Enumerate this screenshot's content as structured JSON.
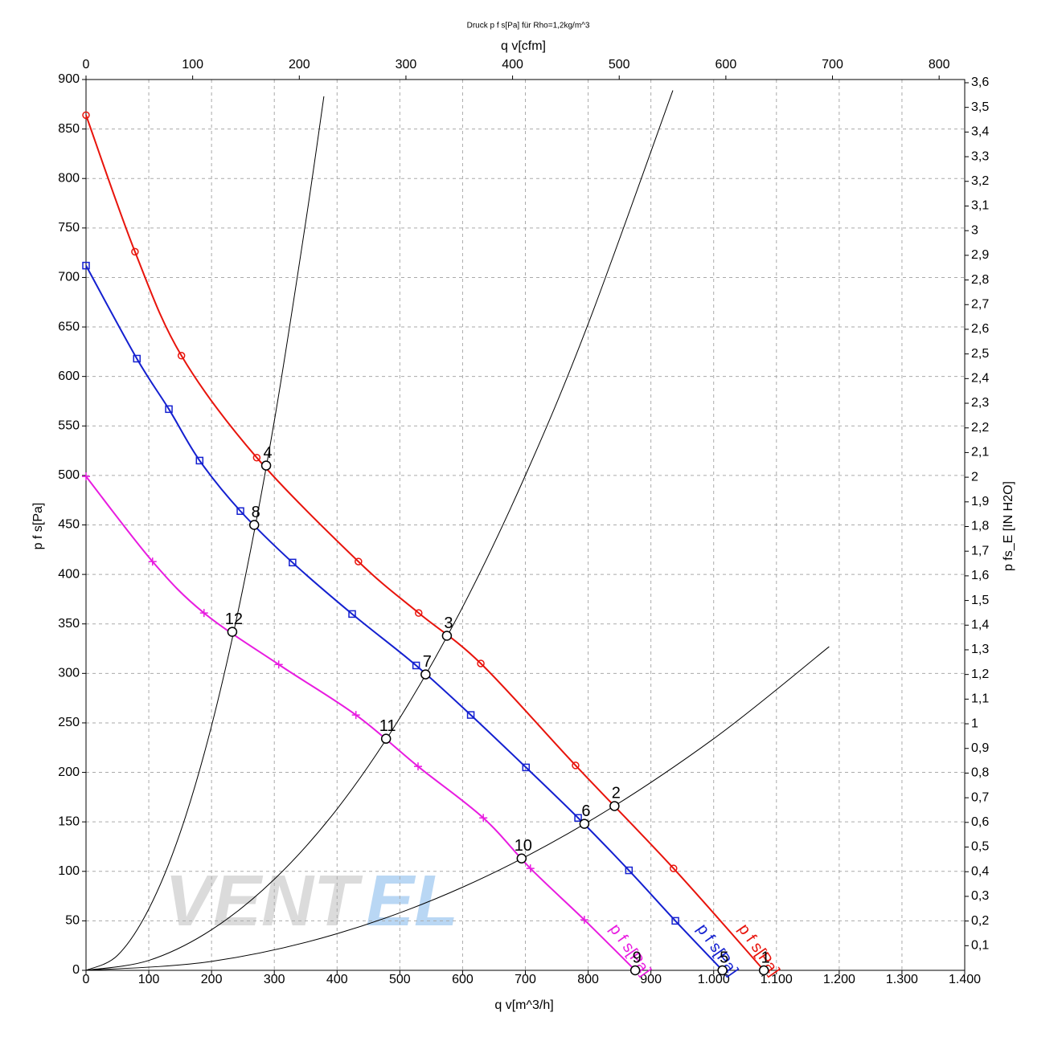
{
  "chart_data": {
    "type": "line",
    "title": "Druck p f s[Pa] für Rho=1,2kg/m^3",
    "x_label": "q v[m^3/h]",
    "x2_label": "q v[cfm]",
    "y_label": "p f s[Pa]",
    "y2_label": "p fs_E [IN H2O]",
    "watermark": [
      "VENT",
      "EL"
    ],
    "grid": true,
    "xlim": [
      0,
      1400
    ],
    "xticks": [
      0,
      100,
      200,
      300,
      400,
      500,
      600,
      700,
      800,
      900,
      {
        "value": 1000,
        "label": "1.000"
      },
      {
        "value": 1100,
        "label": "1.100"
      },
      {
        "value": 1200,
        "label": "1.200"
      },
      {
        "value": 1300,
        "label": "1.300"
      },
      {
        "value": 1400,
        "label": "1.400"
      }
    ],
    "x2lim": [
      0,
      824
    ],
    "x2ticks": [
      0,
      100,
      200,
      300,
      400,
      500,
      600,
      700,
      800
    ],
    "ylim": [
      0,
      900
    ],
    "yticks": [
      0,
      50,
      100,
      150,
      200,
      250,
      300,
      350,
      400,
      450,
      500,
      550,
      600,
      650,
      700,
      750,
      800,
      850,
      900
    ],
    "y2lim": [
      0,
      3.613
    ],
    "y2ticks": [
      {
        "value": 0.1,
        "label": "0,1"
      },
      {
        "value": 0.2,
        "label": "0,2"
      },
      {
        "value": 0.3,
        "label": "0,3"
      },
      {
        "value": 0.4,
        "label": "0,4"
      },
      {
        "value": 0.5,
        "label": "0,5"
      },
      {
        "value": 0.6,
        "label": "0,6"
      },
      {
        "value": 0.7,
        "label": "0,7"
      },
      {
        "value": 0.8,
        "label": "0,8"
      },
      {
        "value": 0.9,
        "label": "0,9"
      },
      1,
      {
        "value": 1.1,
        "label": "1,1"
      },
      {
        "value": 1.2,
        "label": "1,2"
      },
      {
        "value": 1.3,
        "label": "1,3"
      },
      {
        "value": 1.4,
        "label": "1,4"
      },
      {
        "value": 1.5,
        "label": "1,5"
      },
      {
        "value": 1.6,
        "label": "1,6"
      },
      {
        "value": 1.7,
        "label": "1,7"
      },
      {
        "value": 1.8,
        "label": "1,8"
      },
      {
        "value": 1.9,
        "label": "1,9"
      },
      2,
      {
        "value": 2.1,
        "label": "2,1"
      },
      {
        "value": 2.2,
        "label": "2,2"
      },
      {
        "value": 2.3,
        "label": "2,3"
      },
      {
        "value": 2.4,
        "label": "2,4"
      },
      {
        "value": 2.5,
        "label": "2,5"
      },
      {
        "value": 2.6,
        "label": "2,6"
      },
      {
        "value": 2.7,
        "label": "2,7"
      },
      {
        "value": 2.8,
        "label": "2,8"
      },
      {
        "value": 2.9,
        "label": "2,9"
      },
      3,
      {
        "value": 3.1,
        "label": "3,1"
      },
      {
        "value": 3.2,
        "label": "3,2"
      },
      {
        "value": 3.3,
        "label": "3,3"
      },
      {
        "value": 3.4,
        "label": "3,4"
      },
      {
        "value": 3.5,
        "label": "3,5"
      },
      {
        "value": 3.6,
        "label": "3,6"
      }
    ],
    "series": [
      {
        "name": "p f s[Pa]",
        "color": "#e8140c",
        "marker": "circle",
        "x": [
          0,
          78,
          152,
          272,
          434,
          530,
          629,
          780,
          936,
          1080
        ],
        "values": [
          864,
          726,
          621,
          518,
          413,
          361,
          310,
          207,
          103,
          0
        ]
      },
      {
        "name": "p f s[Pa]",
        "color": "#1420d0",
        "marker": "square",
        "x": [
          0,
          81,
          132,
          181,
          246,
          329,
          424,
          526,
          613,
          701,
          784,
          865,
          939,
          1014
        ],
        "values": [
          712,
          618,
          567,
          515,
          464,
          412,
          360,
          308,
          258,
          205,
          154,
          101,
          50,
          0
        ]
      },
      {
        "name": "p f s[Pa]",
        "color": "#e81ce0",
        "marker": "plus",
        "x": [
          0,
          106,
          188,
          307,
          430,
          529,
          633,
          708,
          794,
          875
        ],
        "values": [
          499,
          413,
          361,
          309,
          258,
          206,
          154,
          103,
          51,
          0
        ]
      }
    ],
    "system_curves": [
      {
        "color": "#000000",
        "x": [
          0,
          50,
          100,
          150,
          200,
          250,
          300,
          350,
          379
        ],
        "values": [
          0,
          15,
          62,
          139,
          247,
          386,
          555,
          756,
          883
        ]
      },
      {
        "color": "#000000",
        "x": [
          0,
          100,
          200,
          300,
          400,
          500,
          600,
          700,
          800,
          935
        ],
        "values": [
          0,
          10,
          41,
          92,
          163,
          255,
          367,
          500,
          653,
          889
        ]
      },
      {
        "color": "#000000",
        "x": [
          0,
          200,
          400,
          600,
          800,
          1000,
          1184
        ],
        "values": [
          0,
          9,
          37,
          84,
          150,
          234,
          327
        ]
      }
    ],
    "points": [
      {
        "label": 1,
        "x": 1080,
        "y": 0
      },
      {
        "label": 2,
        "x": 842,
        "y": 166
      },
      {
        "label": 3,
        "x": 575,
        "y": 338
      },
      {
        "label": 4,
        "x": 287,
        "y": 510
      },
      {
        "label": 5,
        "x": 1014,
        "y": 0
      },
      {
        "label": 6,
        "x": 794,
        "y": 148
      },
      {
        "label": 7,
        "x": 541,
        "y": 299
      },
      {
        "label": 8,
        "x": 268,
        "y": 450
      },
      {
        "label": 9,
        "x": 875,
        "y": 0
      },
      {
        "label": 10,
        "x": 694,
        "y": 113
      },
      {
        "label": 11,
        "x": 478,
        "y": 234
      },
      {
        "label": 12,
        "x": 233,
        "y": 342
      }
    ]
  }
}
